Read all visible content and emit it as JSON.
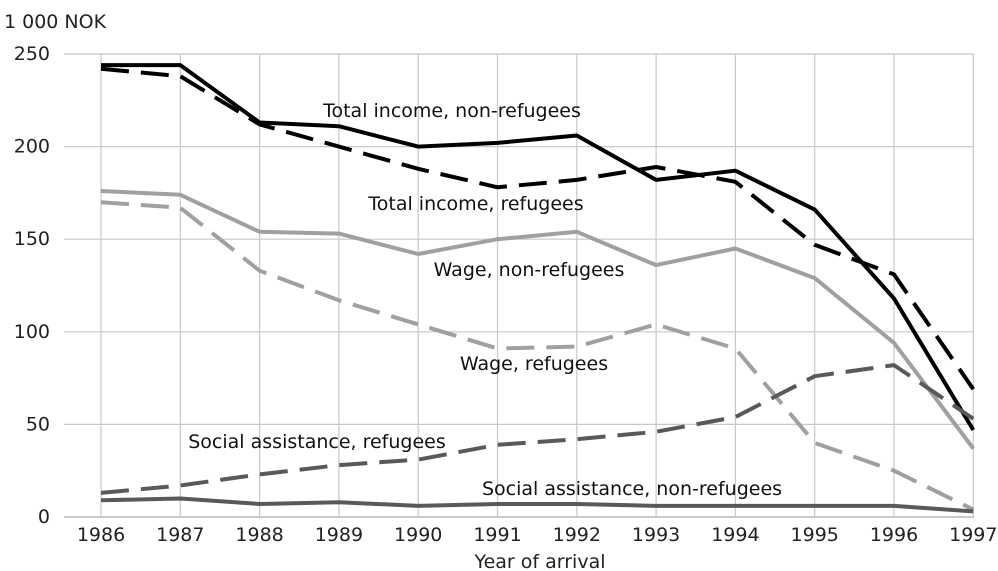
{
  "chart_data": {
    "type": "line",
    "ylabel": "1 000 NOK",
    "xlabel": "Year of arrival",
    "ylim": [
      0,
      250
    ],
    "yticks": [
      0,
      50,
      100,
      150,
      200,
      250
    ],
    "grid": true,
    "categories": [
      "1986",
      "1987",
      "1988",
      "1989",
      "1990",
      "1991",
      "1992",
      "1993",
      "1994",
      "1995",
      "1996",
      "1997"
    ],
    "series": [
      {
        "name": "Total income, non-refugees",
        "color": "#000000",
        "dash": "solid",
        "values": [
          244,
          244,
          213,
          211,
          200,
          202,
          206,
          182,
          187,
          166,
          118,
          47
        ]
      },
      {
        "name": "Total income, refugees",
        "color": "#000000",
        "dash": "dashed",
        "values": [
          242,
          238,
          212,
          200,
          188,
          178,
          182,
          189,
          181,
          147,
          131,
          69
        ]
      },
      {
        "name": "Wage, non-refugees",
        "color": "#a0a0a0",
        "dash": "solid",
        "values": [
          176,
          174,
          154,
          153,
          142,
          150,
          154,
          136,
          145,
          129,
          94,
          37
        ]
      },
      {
        "name": "Wage, refugees",
        "color": "#a0a0a0",
        "dash": "dashed",
        "values": [
          170,
          167,
          133,
          117,
          104,
          91,
          92,
          104,
          91,
          40,
          25,
          4
        ]
      },
      {
        "name": "Social assistance, refugees",
        "color": "#595959",
        "dash": "dashed",
        "values": [
          13,
          17,
          23,
          28,
          31,
          39,
          42,
          46,
          54,
          76,
          82,
          53
        ]
      },
      {
        "name": "Social assistance, non-refugees",
        "color": "#595959",
        "dash": "solid",
        "values": [
          9,
          10,
          7,
          8,
          6,
          7,
          7,
          6,
          6,
          6,
          6,
          3
        ]
      }
    ],
    "annotations": [
      {
        "text": "Total income, non-refugees",
        "series": 0
      },
      {
        "text": "Total income, refugees",
        "series": 1
      },
      {
        "text": "Wage, non-refugees",
        "series": 2
      },
      {
        "text": "Wage, refugees",
        "series": 3
      },
      {
        "text": "Social assistance, refugees",
        "series": 4
      },
      {
        "text": "Social assistance, non-refugees",
        "series": 5
      }
    ]
  }
}
